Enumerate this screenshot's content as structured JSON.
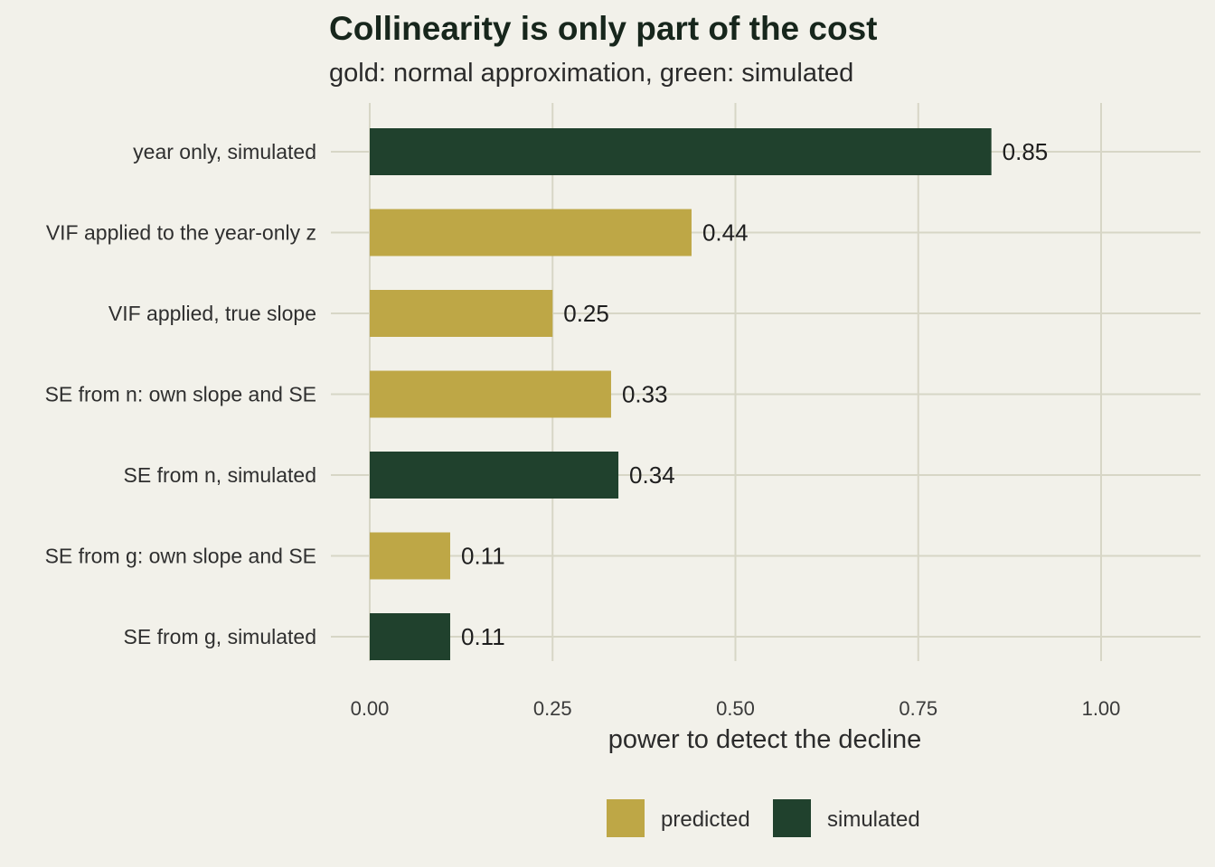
{
  "chart_data": {
    "type": "bar",
    "orientation": "horizontal",
    "title": "Collinearity is only part of the cost",
    "subtitle": "gold: normal approximation, green: simulated",
    "xlabel": "power to detect the decline",
    "ylabel": "",
    "xlim": [
      0,
      1.1
    ],
    "xticks": [
      0,
      0.25,
      0.5,
      0.75,
      1.0
    ],
    "xtick_labels": [
      "0.00",
      "0.25",
      "0.50",
      "0.75",
      "1.00"
    ],
    "grid": true,
    "legend_position": "bottom",
    "colors": {
      "predicted": "#bea746",
      "simulated": "#20412d"
    },
    "legend": [
      {
        "key": "predicted",
        "label": "predicted"
      },
      {
        "key": "simulated",
        "label": "simulated"
      }
    ],
    "bars": [
      {
        "category": "year only, simulated",
        "value": 0.85,
        "label": "0.85",
        "group": "simulated"
      },
      {
        "category": "VIF applied to the year-only z",
        "value": 0.44,
        "label": "0.44",
        "group": "predicted"
      },
      {
        "category": "VIF applied, true slope",
        "value": 0.25,
        "label": "0.25",
        "group": "predicted"
      },
      {
        "category": "SE from n: own slope and SE",
        "value": 0.33,
        "label": "0.33",
        "group": "predicted"
      },
      {
        "category": "SE from n, simulated",
        "value": 0.34,
        "label": "0.34",
        "group": "simulated"
      },
      {
        "category": "SE from g: own slope and SE",
        "value": 0.11,
        "label": "0.11",
        "group": "predicted"
      },
      {
        "category": "SE from g, simulated",
        "value": 0.11,
        "label": "0.11",
        "group": "simulated"
      }
    ]
  }
}
